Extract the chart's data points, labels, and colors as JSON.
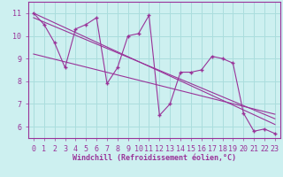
{
  "bg_color": "#cdf0f0",
  "grid_color": "#b0e0e0",
  "line_color": "#993399",
  "marker_color": "#993399",
  "xlabel": "Windchill (Refroidissement éolien,°C)",
  "xlim": [
    -0.5,
    23.5
  ],
  "ylim": [
    5.5,
    11.5
  ],
  "yticks": [
    6,
    7,
    8,
    9,
    10,
    11
  ],
  "xticks": [
    0,
    1,
    2,
    3,
    4,
    5,
    6,
    7,
    8,
    9,
    10,
    11,
    12,
    13,
    14,
    15,
    16,
    17,
    18,
    19,
    20,
    21,
    22,
    23
  ],
  "data_x": [
    0,
    1,
    2,
    3,
    4,
    5,
    6,
    7,
    8,
    9,
    10,
    11,
    12,
    13,
    14,
    15,
    16,
    17,
    18,
    19,
    20,
    21,
    22,
    23
  ],
  "data_y": [
    11.0,
    10.5,
    9.7,
    8.6,
    10.3,
    10.5,
    10.8,
    7.9,
    8.6,
    10.0,
    10.1,
    10.9,
    6.5,
    7.0,
    8.4,
    8.4,
    8.5,
    9.1,
    9.0,
    8.8,
    6.6,
    5.8,
    5.9,
    5.7
  ],
  "trend1_x": [
    0,
    23
  ],
  "trend1_y": [
    11.0,
    6.1
  ],
  "trend2_x": [
    0,
    23
  ],
  "trend2_y": [
    10.8,
    6.35
  ],
  "trend3_x": [
    0,
    23
  ],
  "trend3_y": [
    9.2,
    6.55
  ],
  "xlabel_fontsize": 6,
  "tick_fontsize": 6
}
